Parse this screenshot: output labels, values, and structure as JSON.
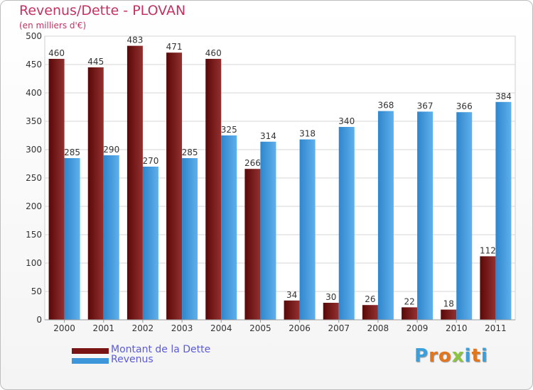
{
  "title": "Revenus/Dette - PLOVAN",
  "subtitle": "(en milliers d'€)",
  "legend": [
    {
      "label": "Montant de la Dette",
      "color": "#7a1414"
    },
    {
      "label": "Revenus",
      "color": "#3d95da"
    }
  ],
  "logo": {
    "letters": [
      "P",
      "r",
      "o",
      "x",
      "i",
      "t",
      "i"
    ],
    "colors": [
      "#3aa0dc",
      "#e2761c",
      "#e2761c",
      "#8cc63f",
      "#3aa0dc",
      "#e2761c",
      "#3aa0dc"
    ]
  },
  "chart_data": {
    "type": "bar",
    "categories": [
      "2000",
      "2001",
      "2002",
      "2003",
      "2004",
      "2005",
      "2006",
      "2007",
      "2008",
      "2009",
      "2010",
      "2011"
    ],
    "series": [
      {
        "name": "Montant de la Dette",
        "values": [
          460,
          445,
          483,
          471,
          460,
          266,
          34,
          30,
          26,
          22,
          18,
          112
        ],
        "color": "#7a1414"
      },
      {
        "name": "Revenus",
        "values": [
          285,
          290,
          270,
          285,
          325,
          314,
          318,
          340,
          368,
          367,
          366,
          384
        ],
        "color": "#3d95da"
      }
    ],
    "ylim": [
      0,
      500
    ],
    "yticks": [
      0,
      50,
      100,
      150,
      200,
      250,
      300,
      350,
      400,
      450,
      500
    ],
    "grid": true
  }
}
